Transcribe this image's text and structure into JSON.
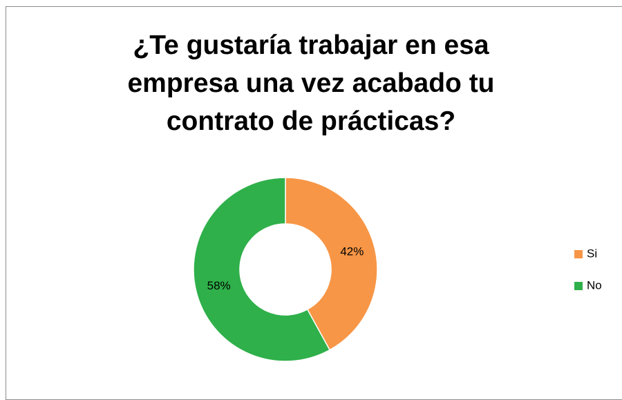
{
  "chart_data": {
    "type": "doughnut",
    "title": "¿Te gustaría trabajar en esa empresa una vez acabado tu contrato de prácticas?",
    "categories": [
      "Si",
      "No"
    ],
    "values": [
      42,
      58
    ],
    "value_labels": [
      "42%",
      "58%"
    ],
    "colors": [
      "#f79646",
      "#2fb04a"
    ],
    "legend": "right"
  }
}
